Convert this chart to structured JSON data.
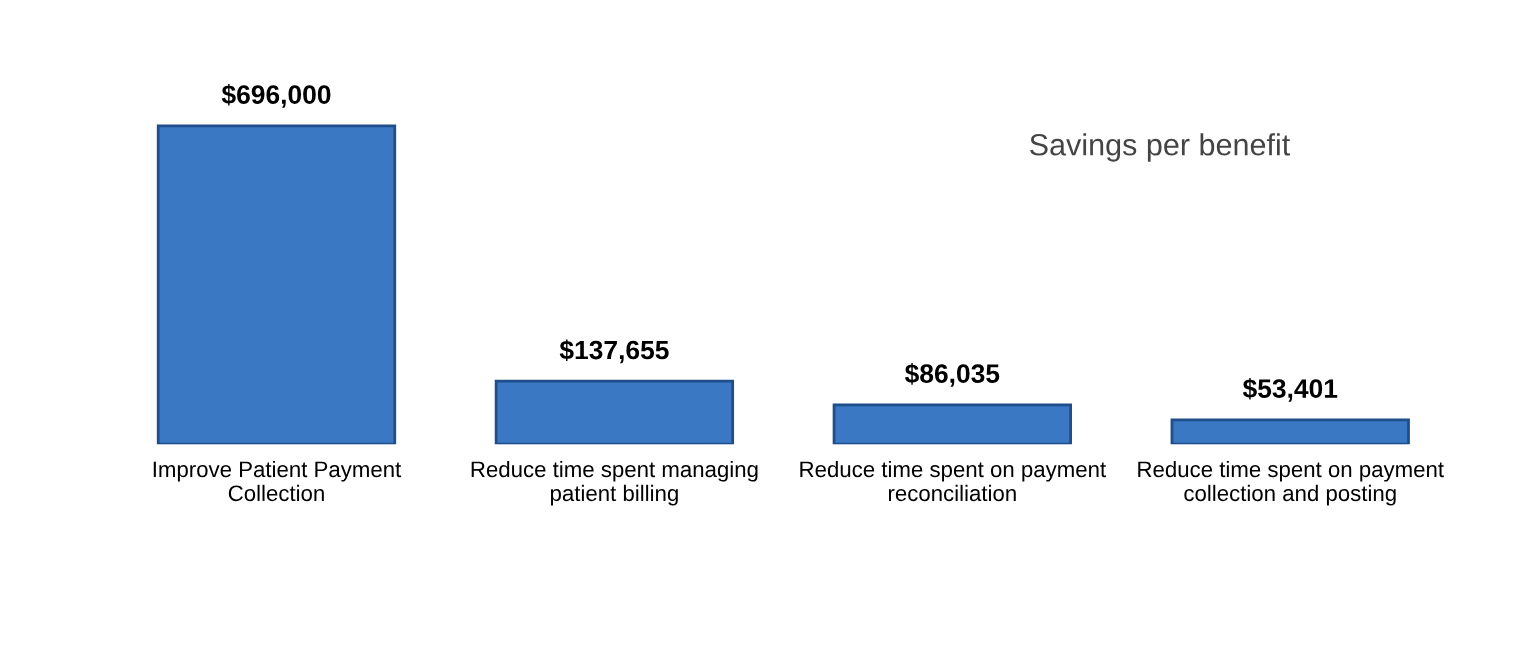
{
  "chart_data": {
    "type": "bar",
    "title": "Savings per benefit",
    "categories": [
      "Improve Patient Payment Collection",
      "Reduce time spent managing patient billing",
      "Reduce time spent on payment reconciliation",
      "Reduce time spent on payment collection and posting"
    ],
    "values": [
      696000,
      137655,
      86035,
      53401
    ],
    "value_labels": [
      "$696,000",
      "$137,655",
      "$86,035",
      "$53,401"
    ],
    "color": "#3a78c4",
    "grid": false,
    "legend": false
  }
}
